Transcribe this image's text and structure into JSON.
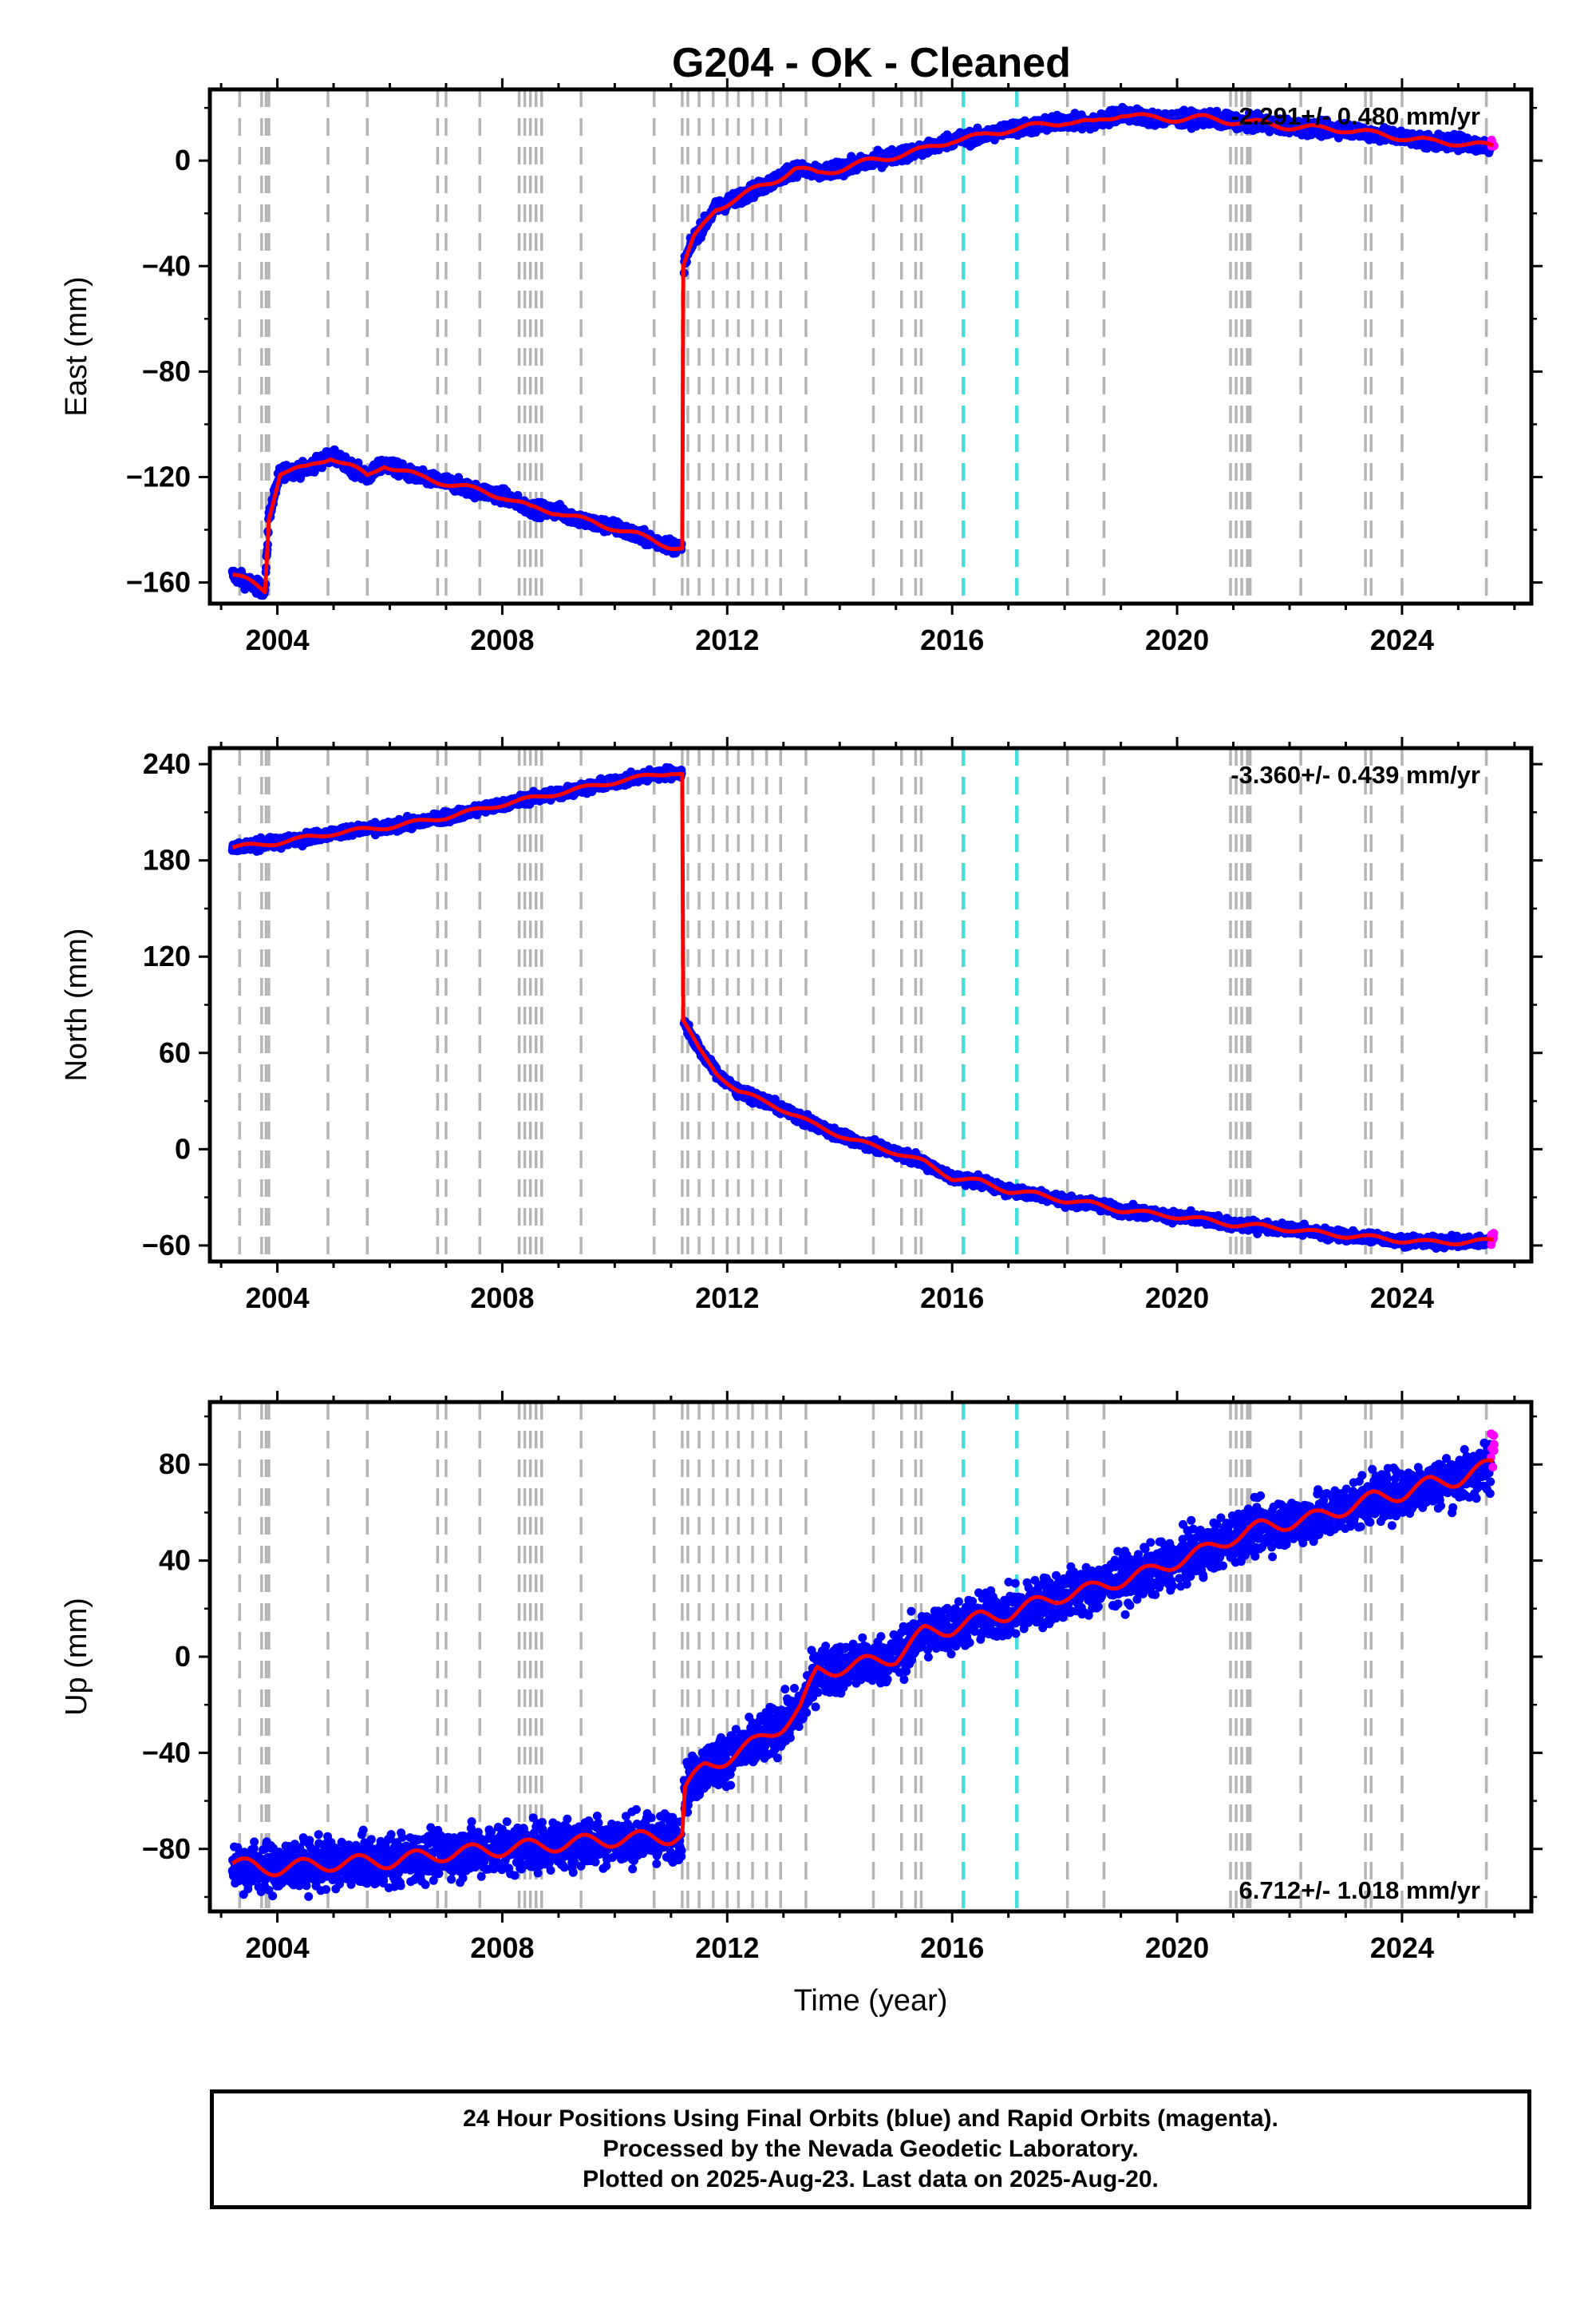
{
  "title": "G204  - OK - Cleaned",
  "colors": {
    "final": "#0000ff",
    "rapid": "#ff00ff",
    "model": "#ff0000",
    "gray_line": "#b4b4b4",
    "cyan_line": "#44dddd"
  },
  "footer": {
    "line1": "24 Hour Positions Using Final Orbits (blue) and Rapid Orbits (magenta).",
    "line2": "Processed by the Nevada Geodetic Laboratory.",
    "line3": "Plotted on 2025-Aug-23. Last data on 2025-Aug-20."
  },
  "chart_data": [
    {
      "type": "scatter",
      "name": "East",
      "ylabel": "East (mm)",
      "xlabel": "",
      "xlim": [
        2002.8,
        2026.3
      ],
      "ylim": [
        -168,
        27
      ],
      "yticks": [
        -160,
        -120,
        -80,
        -40,
        0
      ],
      "xticks": [
        2004,
        2008,
        2012,
        2016,
        2020,
        2024
      ],
      "rate_label": "-2.291+/- 0.480 mm/yr",
      "rate_position": "top-right",
      "noise_mm": 1.8,
      "trend": [
        [
          2003.2,
          -157
        ],
        [
          2003.5,
          -160
        ],
        [
          2003.78,
          -163
        ],
        [
          2003.85,
          -135
        ],
        [
          2004.05,
          -118
        ],
        [
          2004.5,
          -117
        ],
        [
          2004.95,
          -112
        ],
        [
          2005.3,
          -116
        ],
        [
          2005.6,
          -120
        ],
        [
          2005.9,
          -115
        ],
        [
          2006.5,
          -120
        ],
        [
          2007.0,
          -122
        ],
        [
          2007.5,
          -125
        ],
        [
          2008.0,
          -127
        ],
        [
          2008.5,
          -132
        ],
        [
          2009.0,
          -133
        ],
        [
          2009.5,
          -137
        ],
        [
          2010.0,
          -139
        ],
        [
          2010.5,
          -143
        ],
        [
          2011.0,
          -146
        ],
        [
          2011.2,
          -147
        ],
        [
          2011.22,
          -40
        ],
        [
          2011.4,
          -30
        ],
        [
          2011.8,
          -18
        ],
        [
          2012.2,
          -14
        ],
        [
          2012.8,
          -8
        ],
        [
          2013.2,
          -3
        ],
        [
          2013.6,
          -5
        ],
        [
          2014.2,
          -2
        ],
        [
          2015.0,
          2
        ],
        [
          2015.5,
          4
        ],
        [
          2016.0,
          8
        ],
        [
          2016.5,
          9
        ],
        [
          2017.0,
          12
        ],
        [
          2017.5,
          13
        ],
        [
          2018.0,
          15
        ],
        [
          2018.5,
          14
        ],
        [
          2019.0,
          18
        ],
        [
          2019.5,
          16
        ],
        [
          2020.0,
          16
        ],
        [
          2020.5,
          16
        ],
        [
          2021.0,
          15
        ],
        [
          2021.5,
          14
        ],
        [
          2022.0,
          13
        ],
        [
          2022.5,
          12
        ],
        [
          2023.0,
          12
        ],
        [
          2023.5,
          10
        ],
        [
          2024.0,
          9
        ],
        [
          2024.5,
          7
        ],
        [
          2025.0,
          7
        ],
        [
          2025.62,
          5
        ]
      ]
    },
    {
      "type": "scatter",
      "name": "North",
      "ylabel": "North (mm)",
      "xlabel": "",
      "xlim": [
        2002.8,
        2026.3
      ],
      "ylim": [
        -70,
        250
      ],
      "yticks": [
        -60,
        0,
        60,
        120,
        180,
        240
      ],
      "xticks": [
        2004,
        2008,
        2012,
        2016,
        2020,
        2024
      ],
      "rate_label": "-3.360+/- 0.439 mm/yr",
      "rate_position": "top-right",
      "noise_mm": 2.2,
      "trend": [
        [
          2003.2,
          188
        ],
        [
          2004.0,
          191
        ],
        [
          2005.0,
          197
        ],
        [
          2006.0,
          201
        ],
        [
          2007.0,
          207
        ],
        [
          2008.0,
          215
        ],
        [
          2009.0,
          222
        ],
        [
          2010.0,
          229
        ],
        [
          2011.0,
          235
        ],
        [
          2011.2,
          234
        ],
        [
          2011.22,
          80
        ],
        [
          2011.5,
          62
        ],
        [
          2011.8,
          48
        ],
        [
          2012.2,
          36
        ],
        [
          2012.8,
          28
        ],
        [
          2013.5,
          16
        ],
        [
          2014.2,
          6
        ],
        [
          2015.0,
          -2
        ],
        [
          2015.5,
          -8
        ],
        [
          2016.0,
          -18
        ],
        [
          2016.5,
          -20
        ],
        [
          2017.0,
          -26
        ],
        [
          2017.5,
          -28
        ],
        [
          2018.0,
          -32
        ],
        [
          2018.5,
          -34
        ],
        [
          2019.0,
          -38
        ],
        [
          2019.5,
          -40
        ],
        [
          2020.0,
          -42
        ],
        [
          2020.5,
          -44
        ],
        [
          2021.0,
          -47
        ],
        [
          2021.5,
          -48
        ],
        [
          2022.0,
          -50
        ],
        [
          2022.5,
          -52
        ],
        [
          2023.0,
          -54
        ],
        [
          2023.5,
          -55
        ],
        [
          2024.0,
          -57
        ],
        [
          2024.5,
          -58
        ],
        [
          2025.0,
          -58
        ],
        [
          2025.62,
          -57
        ]
      ]
    },
    {
      "type": "scatter",
      "name": "Up",
      "ylabel": "Up (mm)",
      "xlabel": "Time (year)",
      "xlim": [
        2002.8,
        2026.3
      ],
      "ylim": [
        -106,
        106
      ],
      "yticks": [
        -80,
        -40,
        0,
        40,
        80
      ],
      "xticks": [
        2004,
        2008,
        2012,
        2016,
        2020,
        2024
      ],
      "rate_label": "6.712+/- 1.018 mm/yr",
      "rate_position": "bottom-right",
      "noise_mm": 7,
      "trend": [
        [
          2003.2,
          -86
        ],
        [
          2003.7,
          -88
        ],
        [
          2004.0,
          -88
        ],
        [
          2005.0,
          -86
        ],
        [
          2006.0,
          -85
        ],
        [
          2007.0,
          -82
        ],
        [
          2008.0,
          -80
        ],
        [
          2009.0,
          -78
        ],
        [
          2010.0,
          -76
        ],
        [
          2011.0,
          -75
        ],
        [
          2011.2,
          -74
        ],
        [
          2011.25,
          -55
        ],
        [
          2011.6,
          -46
        ],
        [
          2012.0,
          -42
        ],
        [
          2012.5,
          -36
        ],
        [
          2013.0,
          -28
        ],
        [
          2013.3,
          -22
        ],
        [
          2013.6,
          -6
        ],
        [
          2014.2,
          -4
        ],
        [
          2015.0,
          0
        ],
        [
          2015.5,
          10
        ],
        [
          2016.0,
          12
        ],
        [
          2016.5,
          16
        ],
        [
          2017.0,
          18
        ],
        [
          2017.5,
          22
        ],
        [
          2018.0,
          26
        ],
        [
          2018.5,
          28
        ],
        [
          2019.0,
          32
        ],
        [
          2019.5,
          35
        ],
        [
          2020.0,
          40
        ],
        [
          2020.5,
          44
        ],
        [
          2021.0,
          50
        ],
        [
          2021.5,
          54
        ],
        [
          2022.0,
          56
        ],
        [
          2022.5,
          58
        ],
        [
          2023.0,
          62
        ],
        [
          2023.5,
          66
        ],
        [
          2024.0,
          68
        ],
        [
          2024.5,
          72
        ],
        [
          2025.0,
          74
        ],
        [
          2025.62,
          80
        ]
      ]
    }
  ],
  "event_lines": {
    "gray": [
      2003.33,
      2003.72,
      2003.8,
      2003.85,
      2004.9,
      2005.6,
      2006.85,
      2007.0,
      2007.6,
      2008.3,
      2008.4,
      2008.5,
      2008.6,
      2008.7,
      2009.4,
      2010.7,
      2011.2,
      2011.3,
      2011.5,
      2011.75,
      2012.0,
      2012.2,
      2012.45,
      2012.7,
      2012.95,
      2013.4,
      2014.6,
      2015.1,
      2015.35,
      2015.45,
      2018.05,
      2018.7,
      2020.95,
      2021.05,
      2021.15,
      2021.25,
      2021.3,
      2022.2,
      2023.35,
      2023.45,
      2024.0,
      2025.5
    ],
    "cyan": [
      2016.2,
      2017.15
    ]
  }
}
